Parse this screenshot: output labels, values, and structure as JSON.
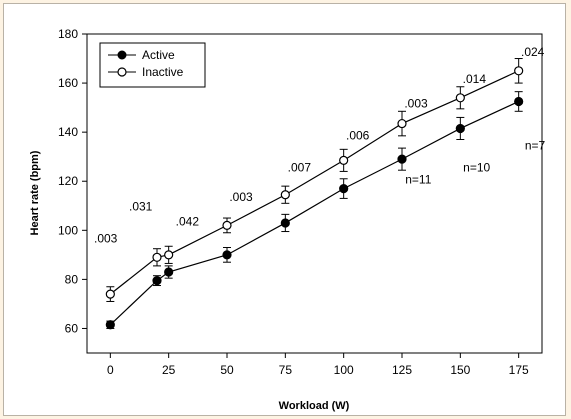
{
  "chart_data": {
    "type": "line",
    "xlabel": "Workload (W)",
    "ylabel": "Heart rate (bpm)",
    "xlim": [
      -10,
      185
    ],
    "ylim": [
      50,
      180
    ],
    "x_ticks": [
      0,
      25,
      50,
      75,
      100,
      125,
      150,
      175
    ],
    "y_ticks": [
      60,
      80,
      100,
      120,
      140,
      160,
      180
    ],
    "legend_position": "top-left",
    "grid": false,
    "series": [
      {
        "name": "Active",
        "marker": "filled-circle",
        "color": "#000000",
        "x": [
          0,
          20,
          25,
          50,
          75,
          100,
          125,
          150,
          175
        ],
        "y": [
          61.5,
          79.5,
          83,
          90,
          103,
          117,
          129,
          141.5,
          152.5
        ],
        "error": [
          1.5,
          2,
          2.5,
          3,
          3.5,
          4,
          4.5,
          4.5,
          4
        ]
      },
      {
        "name": "Inactive",
        "marker": "open-circle",
        "color": "#000000",
        "x": [
          0,
          20,
          25,
          50,
          75,
          100,
          125,
          150,
          175
        ],
        "y": [
          74,
          89,
          90,
          102,
          114.5,
          128.5,
          143.5,
          154,
          165
        ],
        "error": [
          3,
          3.5,
          3.5,
          3,
          3.5,
          4.5,
          5,
          4.5,
          5
        ]
      }
    ],
    "annotations": [
      {
        "text": ".003",
        "x": -2,
        "y": 95
      },
      {
        "text": ".031",
        "x": 13,
        "y": 108
      },
      {
        "text": ".042",
        "x": 33,
        "y": 102
      },
      {
        "text": ".003",
        "x": 56,
        "y": 112
      },
      {
        "text": ".007",
        "x": 81,
        "y": 124
      },
      {
        "text": ".006",
        "x": 106,
        "y": 137
      },
      {
        "text": ".003",
        "x": 131,
        "y": 150
      },
      {
        "text": ".014",
        "x": 156,
        "y": 160
      },
      {
        "text": ".024",
        "x": 181,
        "y": 171
      },
      {
        "text": "n=11",
        "x": 132,
        "y": 119
      },
      {
        "text": "n=10",
        "x": 157,
        "y": 124
      },
      {
        "text": "n=7",
        "x": 182,
        "y": 133
      }
    ]
  }
}
